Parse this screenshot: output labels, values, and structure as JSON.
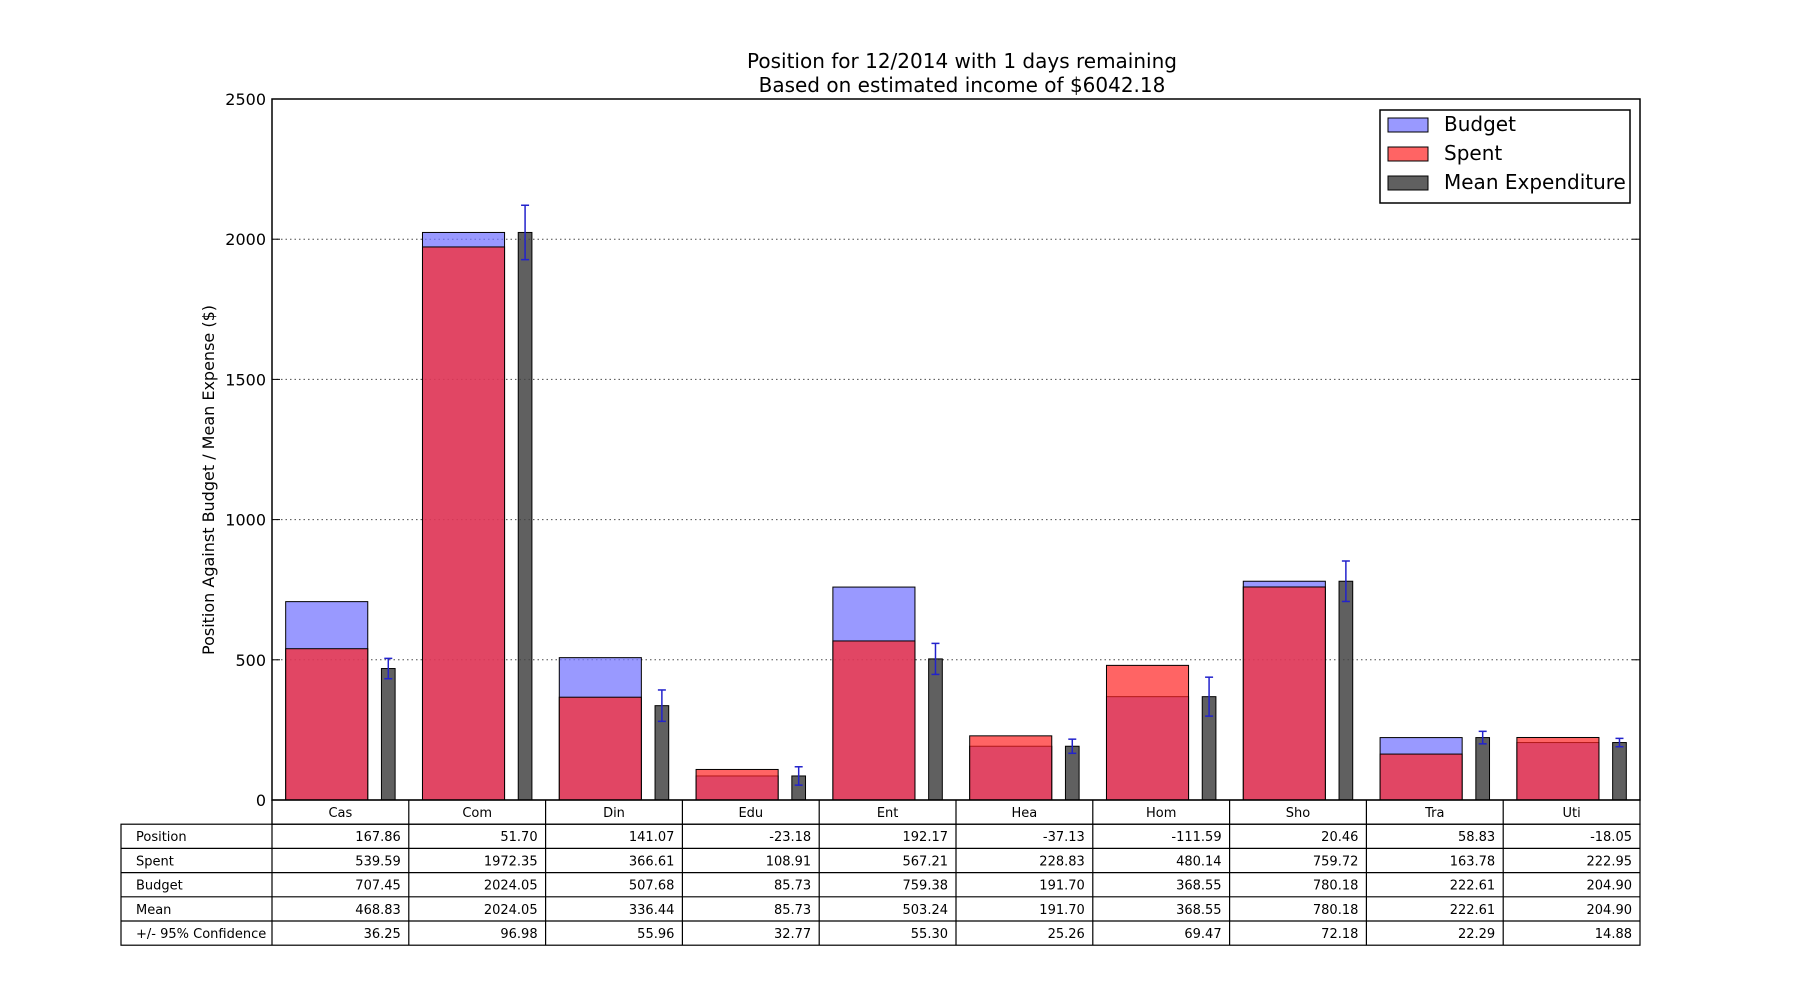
{
  "chart_data": {
    "type": "bar",
    "title": "Position for 12/2014 with 1 days remaining",
    "subtitle": "Based on estimated income of $6042.18",
    "ylabel": "Position Against Budget / Mean Expense ($)",
    "ylim": [
      0,
      2500
    ],
    "yticks": [
      "0",
      "500",
      "1000",
      "1500",
      "2000",
      "2500"
    ],
    "grid": "horizontal dotted",
    "legend_position": "top-right",
    "categories": [
      "Cas",
      "Com",
      "Din",
      "Edu",
      "Ent",
      "Hea",
      "Hom",
      "Sho",
      "Tra",
      "Uti"
    ],
    "series": [
      {
        "name": "Budget",
        "color": "#7777ff",
        "values": [
          707.45,
          2024.05,
          507.68,
          85.73,
          759.38,
          191.7,
          368.55,
          780.18,
          222.61,
          204.9
        ]
      },
      {
        "name": "Spent",
        "color": "#ff2222",
        "values": [
          539.59,
          1972.35,
          366.61,
          108.91,
          567.21,
          228.83,
          480.14,
          759.72,
          163.78,
          222.95
        ]
      },
      {
        "name": "Mean Expenditure",
        "color": "#444444",
        "values": [
          468.83,
          2024.05,
          336.44,
          85.73,
          503.24,
          191.7,
          368.55,
          780.18,
          222.61,
          204.9
        ],
        "error": [
          36.25,
          96.98,
          55.96,
          32.77,
          55.3,
          25.26,
          69.47,
          72.18,
          22.29,
          14.88
        ]
      }
    ],
    "table": {
      "rows": [
        {
          "label": "Position",
          "cells": [
            "167.86",
            "51.70",
            "141.07",
            "-23.18",
            "192.17",
            "-37.13",
            "-111.59",
            "20.46",
            "58.83",
            "-18.05"
          ]
        },
        {
          "label": "Spent",
          "cells": [
            "539.59",
            "1972.35",
            "366.61",
            "108.91",
            "567.21",
            "228.83",
            "480.14",
            "759.72",
            "163.78",
            "222.95"
          ]
        },
        {
          "label": "Budget",
          "cells": [
            "707.45",
            "2024.05",
            "507.68",
            "85.73",
            "759.38",
            "191.70",
            "368.55",
            "780.18",
            "222.61",
            "204.90"
          ]
        },
        {
          "label": "Mean",
          "cells": [
            "468.83",
            "2024.05",
            "336.44",
            "85.73",
            "503.24",
            "191.70",
            "368.55",
            "780.18",
            "222.61",
            "204.90"
          ]
        },
        {
          "label": "+/- 95% Confidence",
          "cells": [
            "36.25",
            "96.98",
            "55.96",
            "32.77",
            "55.30",
            "25.26",
            "69.47",
            "72.18",
            "22.29",
            "14.88"
          ]
        }
      ]
    }
  }
}
